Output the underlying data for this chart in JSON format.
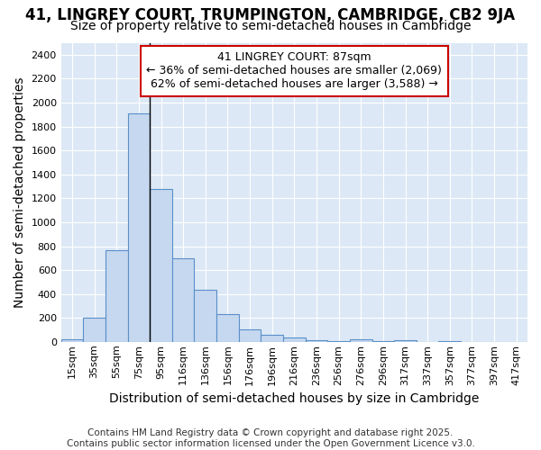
{
  "title_line1": "41, LINGREY COURT, TRUMPINGTON, CAMBRIDGE, CB2 9JA",
  "title_line2": "Size of property relative to semi-detached houses in Cambridge",
  "xlabel": "Distribution of semi-detached houses by size in Cambridge",
  "ylabel": "Number of semi-detached properties",
  "footer_line1": "Contains HM Land Registry data © Crown copyright and database right 2025.",
  "footer_line2": "Contains public sector information licensed under the Open Government Licence v3.0.",
  "annotation_title": "41 LINGREY COURT: 87sqm",
  "annotation_line2": "← 36% of semi-detached houses are smaller (2,069)",
  "annotation_line3": "62% of semi-detached houses are larger (3,588) →",
  "bar_labels": [
    "15sqm",
    "35sqm",
    "55sqm",
    "75sqm",
    "95sqm",
    "116sqm",
    "136sqm",
    "156sqm",
    "176sqm",
    "196sqm",
    "216sqm",
    "236sqm",
    "256sqm",
    "276sqm",
    "296sqm",
    "317sqm",
    "337sqm",
    "357sqm",
    "377sqm",
    "397sqm",
    "417sqm"
  ],
  "bar_values": [
    20,
    200,
    770,
    1910,
    1280,
    700,
    435,
    230,
    105,
    60,
    35,
    15,
    10,
    20,
    10,
    15,
    0,
    10,
    0,
    0,
    0
  ],
  "bar_color": "#c5d8f0",
  "bar_edge_color": "#5b8fc9",
  "vline_x": 3.5,
  "vline_color": "#000000",
  "ylim": [
    0,
    2500
  ],
  "yticks": [
    0,
    200,
    400,
    600,
    800,
    1000,
    1200,
    1400,
    1600,
    1800,
    2000,
    2200,
    2400
  ],
  "fig_bg_color": "#ffffff",
  "plot_bg_color": "#dce8f5",
  "grid_color": "#ffffff",
  "annotation_box_color": "#ffffff",
  "annotation_box_edge": "#cc0000",
  "title_fontsize": 12,
  "subtitle_fontsize": 10,
  "axis_label_fontsize": 10,
  "tick_fontsize": 8,
  "annotation_fontsize": 9,
  "footer_fontsize": 7.5
}
